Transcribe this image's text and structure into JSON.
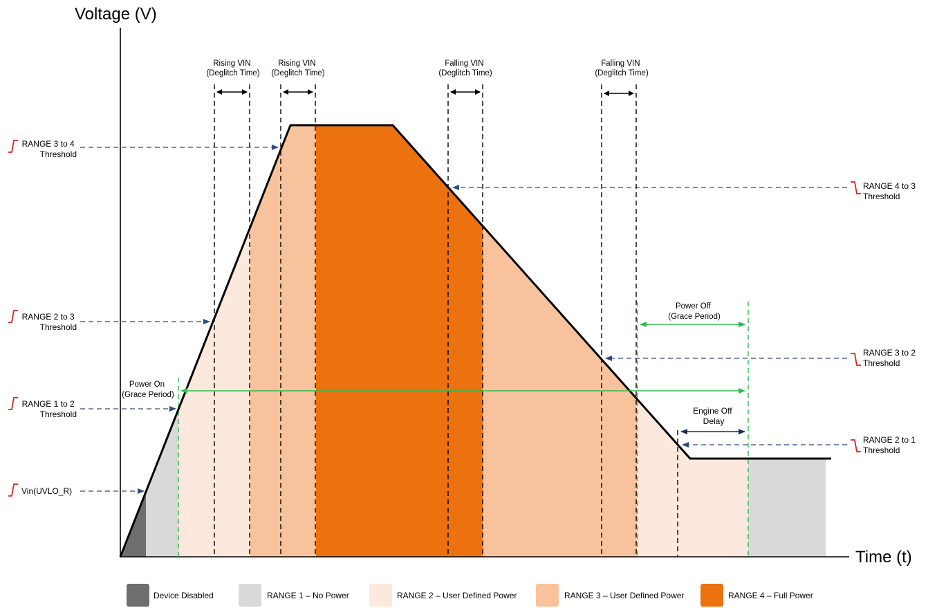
{
  "axes": {
    "y_title": "Voltage (V)",
    "x_title": "Time (t)"
  },
  "thresholds": {
    "range_3_to_4": {
      "line1": "RANGE 3 to 4",
      "line2": "Threshold",
      "edge": "rising"
    },
    "range_2_to_3": {
      "line1": "RANGE 2 to 3",
      "line2": "Threshold",
      "edge": "rising"
    },
    "range_1_to_2": {
      "line1": "RANGE 1 to 2",
      "line2": "Threshold",
      "edge": "rising"
    },
    "vin_uvlo_r": {
      "line1": "Vin(UVLO_R)",
      "edge": "rising"
    },
    "range_4_to_3": {
      "line1": "RANGE 4 to 3",
      "line2": "Threshold",
      "edge": "falling"
    },
    "range_3_to_2": {
      "line1": "RANGE 3 to 2",
      "line2": "Threshold",
      "edge": "falling"
    },
    "range_2_to_1": {
      "line1": "RANGE 2 to 1",
      "line2": "Threshold",
      "edge": "falling"
    }
  },
  "deglitch": {
    "rising_1": {
      "line1": "Rising VIN",
      "line2": "(Deglitch Time)"
    },
    "rising_2": {
      "line1": "Rising VIN",
      "line2": "(Deglitch Time)"
    },
    "falling_1": {
      "line1": "Falling VIN",
      "line2": "(Deglitch Time)"
    },
    "falling_2": {
      "line1": "Falling VIN",
      "line2": "(Deglitch Time)"
    }
  },
  "periods": {
    "power_on": {
      "line1": "Power On",
      "line2": "(Grace Period)"
    },
    "power_off": {
      "line1": "Power Off",
      "line2": "(Grace Period)"
    },
    "engine_off": {
      "line1": "Engine Off",
      "line2": "Delay"
    }
  },
  "legend": [
    {
      "label": "Device Disabled",
      "color": "#6e6e6e"
    },
    {
      "label": "RANGE 1 – No Power",
      "color": "#d9d9d9"
    },
    {
      "label": "RANGE 2 – User Defined Power",
      "color": "#fce8dc"
    },
    {
      "label": "RANGE 3 – User Defined Power",
      "color": "#f8c39c"
    },
    {
      "label": "RANGE 4 – Full Power",
      "color": "#eb720f"
    }
  ],
  "colors": {
    "device_disabled": "#6e6e6e",
    "range_1": "#d9d9d9",
    "range_2": "#fce8dc",
    "range_3": "#f8c39c",
    "range_4": "#eb720f",
    "grace_period": "#2dbb4e",
    "threshold_arrow": "#2f4b7c",
    "engine_off_arrow": "#1a2a5c",
    "rising_edge_icon": "#d9261c",
    "falling_edge_icon": "#d9261c"
  }
}
